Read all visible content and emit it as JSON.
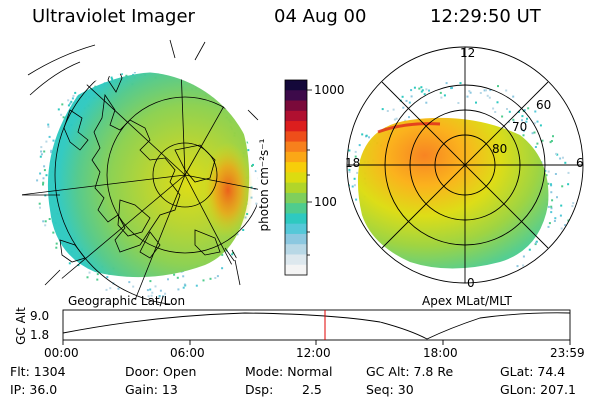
{
  "header": {
    "instrument": "Ultraviolet Imager",
    "date": "04 Aug 00",
    "time": "12:29:50 UT"
  },
  "left_panel": {
    "caption": "Geographic Lat/Lon"
  },
  "right_panel": {
    "caption": "Apex MLat/MLT",
    "mlt_labels": [
      "12",
      "18",
      "6",
      "0"
    ],
    "mlat_labels": [
      "60",
      "70",
      "80"
    ]
  },
  "colorbar": {
    "unit_label": "photon cm⁻²s⁻¹",
    "tick_labels": [
      "1000",
      "100"
    ],
    "colors": [
      "#f4f4f4",
      "#dde8ee",
      "#b8d8e6",
      "#8cc8e0",
      "#55c8d8",
      "#2ec9c0",
      "#4fcc8e",
      "#7fcf5c",
      "#b1d52a",
      "#dcdc10",
      "#f7ce0a",
      "#fba716",
      "#f7801c",
      "#ee4e1a",
      "#dc1e1e",
      "#b01030",
      "#7a0a3a",
      "#3d0a4a",
      "#14083a"
    ]
  },
  "timeline": {
    "axis_label": "GC Alt",
    "y_ticks": [
      "9.0",
      "1.8"
    ],
    "x_ticks": [
      "00:00",
      "06:00",
      "12:00",
      "18:00",
      "23:59"
    ],
    "marker_color": "#e00000"
  },
  "stats": {
    "flt": "Flt: 1304",
    "ip": "IP: 36.0",
    "door": "Door: Open",
    "gain": "Gain: 13",
    "mode": "Mode: Normal",
    "dsp_label": "Dsp:",
    "dsp_value": "2.5",
    "gc_alt": "GC Alt: 7.8 Re",
    "seq": "Seq: 30",
    "glat": "GLat: 74.4",
    "glon": "GLon: 207.1"
  }
}
